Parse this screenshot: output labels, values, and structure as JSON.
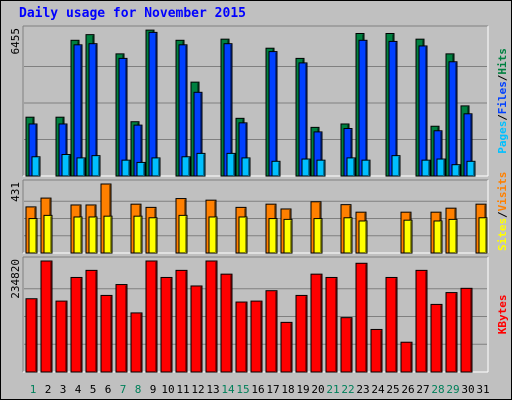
{
  "chart_data": {
    "type": "bar",
    "title": "Daily usage for November 2015",
    "x": [
      "1",
      "2",
      "3",
      "4",
      "5",
      "6",
      "7",
      "8",
      "9",
      "10",
      "11",
      "12",
      "13",
      "14",
      "15",
      "16",
      "17",
      "18",
      "19",
      "20",
      "21",
      "22",
      "23",
      "24",
      "25",
      "26",
      "27",
      "28",
      "29",
      "30",
      "31"
    ],
    "weekend_days": [
      "1",
      "7",
      "8",
      "14",
      "15",
      "21",
      "22",
      "28",
      "29"
    ],
    "panels": [
      {
        "id": "pages-files-hits",
        "ymax_label": "6455",
        "ymax": 6455,
        "right_labels": [
          "Pages",
          "/",
          "Files",
          "/",
          "Hits"
        ],
        "series": [
          {
            "name": "Hits",
            "color": "#008040",
            "values": [
              2600,
              0,
              2600,
              6000,
              6250,
              0,
              5400,
              2400,
              6450,
              0,
              6000,
              4150,
              0,
              6050,
              2550,
              0,
              5650,
              0,
              5200,
              2150,
              0,
              2300,
              6300,
              0,
              6300,
              0,
              6050,
              2200,
              5400,
              3100,
              0
            ]
          },
          {
            "name": "Files",
            "color": "#0040FF",
            "values": [
              2300,
              0,
              2300,
              5800,
              5850,
              0,
              5200,
              2250,
              6350,
              0,
              5800,
              3700,
              0,
              5850,
              2350,
              0,
              5500,
              0,
              5000,
              1950,
              0,
              2100,
              6000,
              0,
              5950,
              0,
              5750,
              2000,
              5050,
              2750,
              0
            ]
          },
          {
            "name": "Pages",
            "color": "#00C0FF",
            "values": [
              850,
              0,
              950,
              800,
              900,
              0,
              700,
              600,
              800,
              0,
              850,
              1000,
              0,
              1000,
              800,
              0,
              650,
              0,
              750,
              700,
              0,
              800,
              700,
              0,
              900,
              0,
              700,
              750,
              500,
              650,
              0
            ]
          }
        ]
      },
      {
        "id": "visits-sites",
        "ymax_label": "431",
        "ymax": 431,
        "right_labels": [
          "Sites",
          "/",
          "Visits"
        ],
        "series": [
          {
            "name": "Visits",
            "color": "#FF8000",
            "values": [
              288,
              343,
              0,
              300,
              300,
              431,
              0,
              305,
              285,
              0,
              340,
              0,
              330,
              0,
              285,
              0,
              305,
              275,
              0,
              320,
              0,
              302,
              255,
              0,
              0,
              255,
              0,
              255,
              280,
              0,
              305
            ]
          },
          {
            "name": "Sites",
            "color": "#FFFF00",
            "values": [
              215,
              235,
              0,
              225,
              225,
              230,
              0,
              230,
              220,
              0,
              235,
              0,
              225,
              0,
              225,
              0,
              215,
              210,
              0,
              215,
              0,
              220,
              200,
              0,
              0,
              205,
              0,
              200,
              210,
              0,
              220
            ]
          }
        ]
      },
      {
        "id": "kbytes",
        "ymax_label": "234820",
        "ymax": 234820,
        "right_labels": [
          "KBytes"
        ],
        "series": [
          {
            "name": "KBytes",
            "color": "#FF0000",
            "values": [
              155000,
              234820,
              150000,
              200000,
              215000,
              162000,
              185000,
              125000,
              234820,
              200000,
              215000,
              182000,
              234820,
              207000,
              148000,
              150000,
              172000,
              105000,
              162000,
              207000,
              200000,
              115000,
              230000,
              90000,
              200000,
              63000,
              215000,
              143000,
              168000,
              177000,
              0
            ]
          }
        ]
      }
    ]
  }
}
